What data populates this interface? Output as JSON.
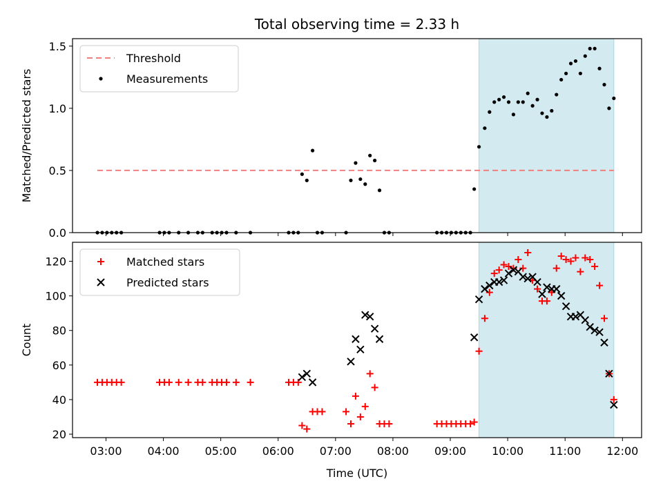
{
  "chart_data": {
    "title": "Total observing time = 2.33 h",
    "xlabel": "Time (UTC)",
    "xticks": [
      "03:00",
      "04:00",
      "05:00",
      "06:00",
      "07:00",
      "08:00",
      "09:00",
      "10:00",
      "11:00",
      "12:00"
    ],
    "xlim": [
      "02:25",
      "12:20"
    ],
    "shaded_interval": [
      "09:30",
      "11:51"
    ],
    "shade_color": "#d3eaf0",
    "panels": [
      {
        "type": "scatter",
        "ylabel": "Matched/Predicted stars",
        "ylim": [
          0,
          1.56
        ],
        "yticks": [
          "0.0",
          "0.5",
          "1.0",
          "1.5"
        ],
        "legend_position": "top-left",
        "series": [
          {
            "name": "Threshold",
            "style": "dashed-line",
            "color": "#f08080",
            "x": [
              "02:51",
              "11:51"
            ],
            "y": [
              0.5,
              0.5
            ]
          },
          {
            "name": "Measurements",
            "style": "dot",
            "color": "#000000",
            "x": [
              "02:51",
              "02:56",
              "03:01",
              "03:06",
              "03:11",
              "03:16",
              "03:56",
              "04:01",
              "04:06",
              "04:16",
              "04:26",
              "04:36",
              "04:41",
              "04:51",
              "04:56",
              "05:01",
              "05:06",
              "05:16",
              "05:31",
              "06:11",
              "06:16",
              "06:21",
              "06:25",
              "06:30",
              "06:36",
              "06:41",
              "06:46",
              "07:11",
              "07:16",
              "07:21",
              "07:26",
              "07:31",
              "07:36",
              "07:41",
              "07:46",
              "07:51",
              "07:56",
              "08:46",
              "08:51",
              "08:56",
              "09:01",
              "09:06",
              "09:11",
              "09:16",
              "09:21",
              "09:25",
              "09:30",
              "09:36",
              "09:41",
              "09:46",
              "09:51",
              "09:56",
              "10:01",
              "10:06",
              "10:11",
              "10:16",
              "10:21",
              "10:26",
              "10:31",
              "10:36",
              "10:41",
              "10:46",
              "10:51",
              "10:56",
              "11:01",
              "11:06",
              "11:11",
              "11:16",
              "11:21",
              "11:26",
              "11:31",
              "11:36",
              "11:41",
              "11:46",
              "11:51"
            ],
            "y": [
              0,
              0,
              0,
              0,
              0,
              0,
              0,
              0,
              0,
              0,
              0,
              0,
              0,
              0,
              0,
              0,
              0,
              0,
              0,
              0,
              0,
              0,
              0.47,
              0.42,
              0.66,
              0,
              0,
              0,
              0.42,
              0.56,
              0.43,
              0.39,
              0.62,
              0.58,
              0.34,
              0,
              0,
              0,
              0,
              0,
              0,
              0,
              0,
              0,
              0,
              0.35,
              0.69,
              0.84,
              0.97,
              1.05,
              1.07,
              1.09,
              1.05,
              0.95,
              1.05,
              1.05,
              1.12,
              1.02,
              1.07,
              0.96,
              0.93,
              0.98,
              1.11,
              1.23,
              1.28,
              1.36,
              1.38,
              1.28,
              1.42,
              1.48,
              1.48,
              1.32,
              1.19,
              1.0,
              1.08
            ]
          }
        ]
      },
      {
        "type": "scatter",
        "ylabel": "Count",
        "ylim": [
          18,
          131
        ],
        "yticks": [
          "20",
          "40",
          "60",
          "80",
          "100",
          "120"
        ],
        "legend_position": "top-left",
        "series": [
          {
            "name": "Matched stars",
            "style": "plus",
            "color": "#ff0000",
            "x": [
              "02:51",
              "02:56",
              "03:01",
              "03:06",
              "03:11",
              "03:16",
              "03:56",
              "04:01",
              "04:06",
              "04:16",
              "04:26",
              "04:36",
              "04:41",
              "04:51",
              "04:56",
              "05:01",
              "05:06",
              "05:16",
              "05:31",
              "06:11",
              "06:16",
              "06:21",
              "06:25",
              "06:30",
              "06:36",
              "06:41",
              "06:46",
              "07:11",
              "07:16",
              "07:21",
              "07:26",
              "07:31",
              "07:36",
              "07:41",
              "07:46",
              "07:51",
              "07:56",
              "08:46",
              "08:51",
              "08:56",
              "09:01",
              "09:06",
              "09:11",
              "09:16",
              "09:21",
              "09:25",
              "09:30",
              "09:36",
              "09:41",
              "09:46",
              "09:51",
              "09:56",
              "10:01",
              "10:06",
              "10:11",
              "10:16",
              "10:21",
              "10:26",
              "10:31",
              "10:36",
              "10:41",
              "10:46",
              "10:51",
              "10:56",
              "11:01",
              "11:06",
              "11:11",
              "11:16",
              "11:21",
              "11:26",
              "11:31",
              "11:36",
              "11:41",
              "11:46",
              "11:51"
            ],
            "y": [
              50,
              50,
              50,
              50,
              50,
              50,
              50,
              50,
              50,
              50,
              50,
              50,
              50,
              50,
              50,
              50,
              50,
              50,
              50,
              50,
              50,
              50,
              25,
              23,
              33,
              33,
              33,
              33,
              26,
              42,
              30,
              36,
              55,
              47,
              26,
              26,
              26,
              26,
              26,
              26,
              26,
              26,
              26,
              26,
              26,
              27,
              68,
              87,
              102,
              113,
              115,
              118,
              117,
              116,
              121,
              116,
              125,
              109,
              104,
              97,
              97,
              102,
              116,
              123,
              121,
              120,
              122,
              114,
              122,
              121,
              117,
              106,
              87,
              55,
              40
            ]
          },
          {
            "name": "Predicted stars",
            "style": "x",
            "color": "#000000",
            "x": [
              "06:25",
              "06:30",
              "06:36",
              "07:16",
              "07:21",
              "07:26",
              "07:31",
              "07:36",
              "07:41",
              "07:46",
              "09:25",
              "09:30",
              "09:36",
              "09:41",
              "09:46",
              "09:51",
              "09:56",
              "10:01",
              "10:06",
              "10:11",
              "10:16",
              "10:21",
              "10:26",
              "10:31",
              "10:36",
              "10:41",
              "10:46",
              "10:51",
              "10:56",
              "11:01",
              "11:06",
              "11:11",
              "11:16",
              "11:21",
              "11:26",
              "11:31",
              "11:36",
              "11:41",
              "11:46",
              "11:51"
            ],
            "y": [
              53,
              55,
              50,
              62,
              75,
              69,
              89,
              88,
              81,
              75,
              76,
              98,
              104,
              106,
              108,
              108,
              109,
              113,
              115,
              114,
              111,
              110,
              111,
              108,
              101,
              105,
              104,
              104,
              100,
              94,
              88,
              88,
              89,
              86,
              82,
              80,
              79,
              73,
              55,
              37
            ]
          }
        ]
      }
    ]
  }
}
